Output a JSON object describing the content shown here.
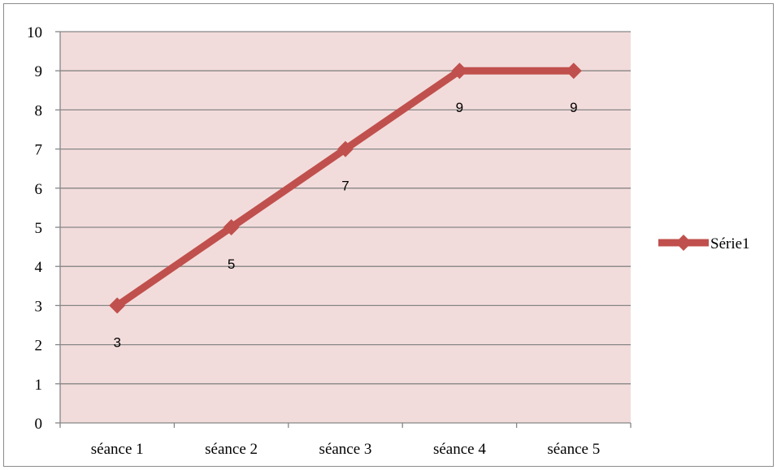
{
  "chart_data": {
    "type": "line",
    "categories": [
      "séance 1",
      "séance 2",
      "séance 3",
      "séance 4",
      "séance 5"
    ],
    "series": [
      {
        "name": "Série1",
        "values": [
          3,
          5,
          7,
          9,
          9
        ]
      }
    ],
    "data_labels": [
      "3",
      "5",
      "7",
      "9",
      "9"
    ],
    "ylim": [
      0,
      10
    ],
    "yticks": [
      0,
      1,
      2,
      3,
      4,
      5,
      6,
      7,
      8,
      9,
      10
    ],
    "grid": true,
    "legend": "right",
    "colors": {
      "series": "#c0504d",
      "plot_background": "#f2dcdb",
      "gridline": "#868686",
      "axis": "#868686"
    }
  }
}
